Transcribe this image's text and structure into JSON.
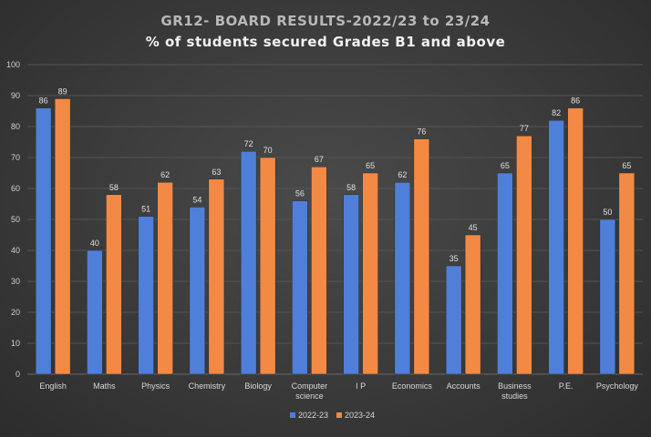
{
  "chart_data": {
    "type": "bar",
    "title": "GR12- BOARD RESULTS-2022/23 to 23/24",
    "subtitle": "% of students secured Grades B1 and above",
    "categories": [
      "English",
      "Maths",
      "Physics",
      "Chemistry",
      "Biology",
      "Computer science",
      "I P",
      "Economics",
      "Accounts",
      "Business studies",
      "P.E.",
      "Psychology"
    ],
    "series": [
      {
        "name": "2022-23",
        "color": "#4f7fd9",
        "values": [
          86,
          40,
          51,
          54,
          72,
          56,
          58,
          62,
          35,
          65,
          82,
          50
        ]
      },
      {
        "name": "2023-24",
        "color": "#f28a45",
        "values": [
          89,
          58,
          62,
          63,
          70,
          67,
          65,
          76,
          45,
          77,
          86,
          65
        ]
      }
    ],
    "ylim": [
      0,
      100
    ],
    "yticks": [
      0,
      10,
      20,
      30,
      40,
      50,
      60,
      70,
      80,
      90,
      100
    ],
    "grid": true,
    "legend": "bottom-center"
  }
}
